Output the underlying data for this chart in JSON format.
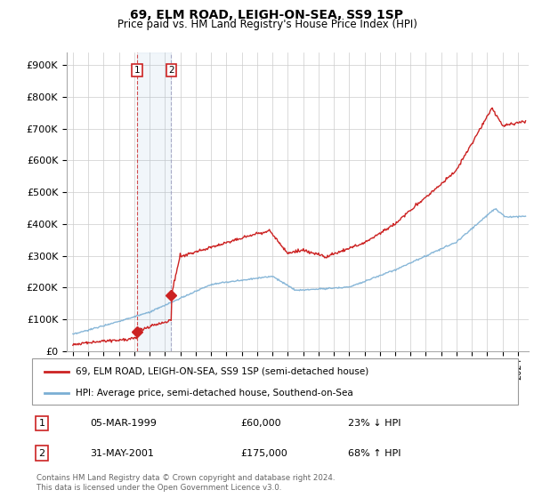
{
  "title": "69, ELM ROAD, LEIGH-ON-SEA, SS9 1SP",
  "subtitle": "Price paid vs. HM Land Registry's House Price Index (HPI)",
  "ylabel_ticks": [
    "£0",
    "£100K",
    "£200K",
    "£300K",
    "£400K",
    "£500K",
    "£600K",
    "£700K",
    "£800K",
    "£900K"
  ],
  "ytick_values": [
    0,
    100000,
    200000,
    300000,
    400000,
    500000,
    600000,
    700000,
    800000,
    900000
  ],
  "ylim": [
    0,
    940000
  ],
  "xlim_start": 1994.6,
  "xlim_end": 2024.7,
  "legend_line1": "69, ELM ROAD, LEIGH-ON-SEA, SS9 1SP (semi-detached house)",
  "legend_line2": "HPI: Average price, semi-detached house, Southend-on-Sea",
  "sale1_date": "05-MAR-1999",
  "sale1_price": "£60,000",
  "sale1_hpi": "23% ↓ HPI",
  "sale2_date": "31-MAY-2001",
  "sale2_price": "£175,000",
  "sale2_hpi": "68% ↑ HPI",
  "footnote": "Contains HM Land Registry data © Crown copyright and database right 2024.\nThis data is licensed under the Open Government Licence v3.0.",
  "hpi_color": "#7bafd4",
  "sale_color": "#cc2222",
  "sale1_x": 1999.18,
  "sale1_y": 60000,
  "sale2_x": 2001.41,
  "sale2_y": 175000
}
